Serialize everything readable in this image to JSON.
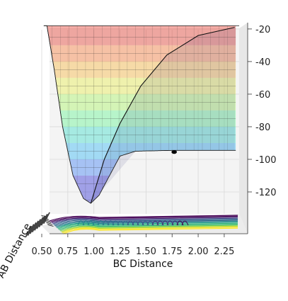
{
  "chart_data": {
    "type": "3d-surface",
    "title": "",
    "xlabel": "BC Distance",
    "ylabel": "AB Distance",
    "zlabel": "",
    "x_ticks": [
      "0.50",
      "0.75",
      "1.00",
      "1.25",
      "1.50",
      "1.75",
      "2.00",
      "2.25"
    ],
    "z_ticks": [
      "-20",
      "-40",
      "-60",
      "-80",
      "-100",
      "-120"
    ],
    "xlim": [
      0.5,
      2.4
    ],
    "zlim": [
      -130,
      -17
    ],
    "colormap_surface": "jet (semi-transparent)",
    "colormap_contours": "viridis",
    "surface_bands": [
      {
        "from": -130,
        "to": -110,
        "color": "#2a2ad4"
      },
      {
        "from": -110,
        "to": -100,
        "color": "#3a7df2"
      },
      {
        "from": -100,
        "to": -90,
        "color": "#2fb6f2"
      },
      {
        "from": -90,
        "to": -80,
        "color": "#39dcc8"
      },
      {
        "from": -80,
        "to": -70,
        "color": "#62f28f"
      },
      {
        "from": -70,
        "to": -60,
        "color": "#a8f460"
      },
      {
        "from": -60,
        "to": -50,
        "color": "#e6ec4a"
      },
      {
        "from": -50,
        "to": -40,
        "color": "#f9b53c"
      },
      {
        "from": -40,
        "to": -30,
        "color": "#f77a36"
      },
      {
        "from": -30,
        "to": -17,
        "color": "#e53a2a"
      }
    ],
    "minimum_profile": [
      {
        "x": 0.55,
        "z": -18
      },
      {
        "x": 0.62,
        "z": -45
      },
      {
        "x": 0.7,
        "z": -80
      },
      {
        "x": 0.8,
        "z": -110
      },
      {
        "x": 0.9,
        "z": -124
      },
      {
        "x": 0.97,
        "z": -127
      },
      {
        "x": 1.05,
        "z": -122
      },
      {
        "x": 1.15,
        "z": -110
      },
      {
        "x": 1.25,
        "z": -98
      },
      {
        "x": 1.4,
        "z": -95
      },
      {
        "x": 1.75,
        "z": -94.5
      },
      {
        "x": 2.35,
        "z": -94.5
      }
    ],
    "ridge_profile": [
      {
        "x": 0.97,
        "z": -127
      },
      {
        "x": 1.1,
        "z": -100
      },
      {
        "x": 1.25,
        "z": -78
      },
      {
        "x": 1.45,
        "z": -55
      },
      {
        "x": 1.7,
        "z": -36
      },
      {
        "x": 2.0,
        "z": -24
      },
      {
        "x": 2.35,
        "z": -19
      }
    ],
    "marker": {
      "x": 1.77,
      "z": -95.5
    }
  }
}
